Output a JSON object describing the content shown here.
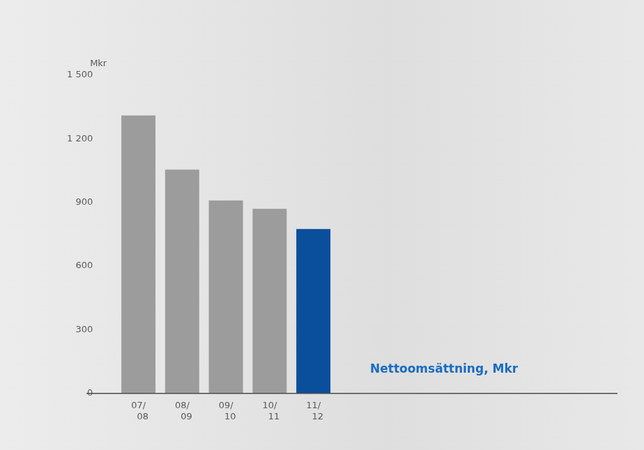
{
  "chart_data": {
    "type": "bar",
    "y_label": "Mkr",
    "annotation": "Nettoomsättning, Mkr",
    "categories": [
      "07/08",
      "08/09",
      "09/10",
      "10/11",
      "11/12"
    ],
    "values": [
      1310,
      1055,
      910,
      870,
      775
    ],
    "colors": [
      "#9c9c9c",
      "#9c9c9c",
      "#9c9c9c",
      "#9c9c9c",
      "#0a4f9c"
    ],
    "ylim": [
      0,
      1500
    ],
    "yticks": [
      0,
      300,
      600,
      900,
      {
        "value": 1200,
        "label": "1 200"
      },
      {
        "value": 1500,
        "label": "1 500"
      }
    ],
    "grid": false
  }
}
